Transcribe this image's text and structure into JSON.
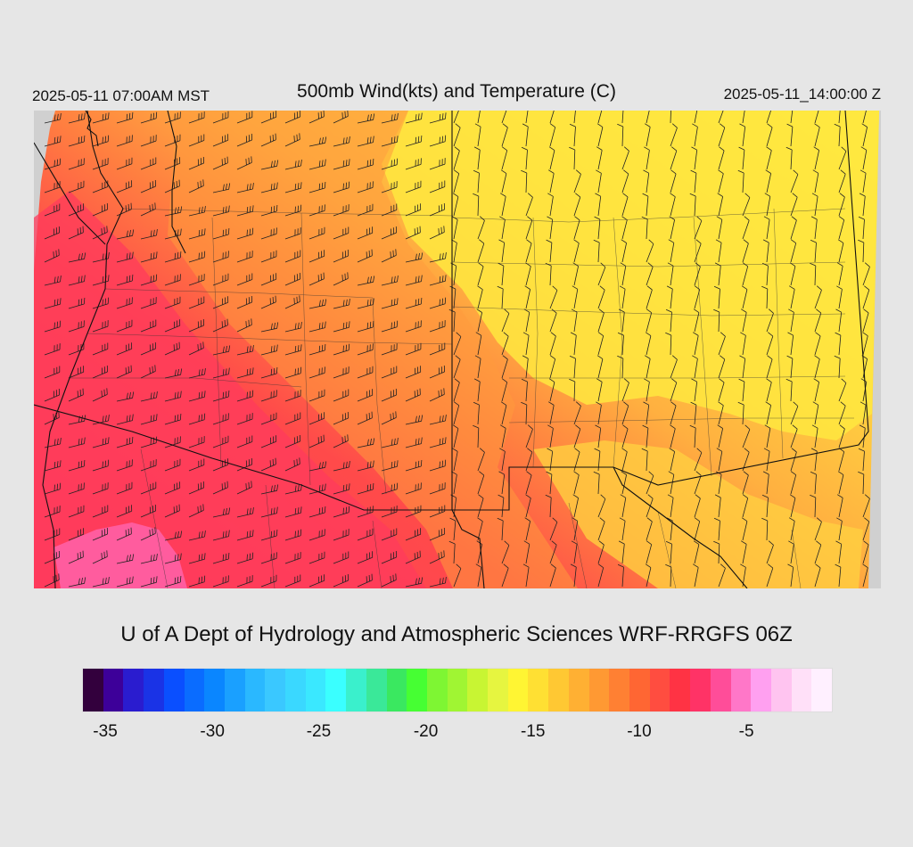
{
  "header": {
    "local_time": "2025-05-11 07:00AM MST",
    "title": "500mb Wind(kts) and Temperature (C)",
    "utc_time": "2025-05-11_14:00:00 Z"
  },
  "credit": "U of A Dept of Hydrology and Atmospheric Sciences WRF-RRGFS 06Z",
  "colorbar": {
    "colors": [
      "#33003d",
      "#3d0099",
      "#2a1ccf",
      "#1a33e6",
      "#0a4fff",
      "#0a6cff",
      "#0a86ff",
      "#1aa0ff",
      "#2ab8ff",
      "#3ac8ff",
      "#3ad8ff",
      "#3ae8ff",
      "#3affff",
      "#3af0cc",
      "#3ae899",
      "#3ae860",
      "#46ff33",
      "#7ef633",
      "#a0f533",
      "#c8f533",
      "#e6f540",
      "#fff533",
      "#ffe033",
      "#ffc833",
      "#ffb033",
      "#ff9933",
      "#ff8033",
      "#ff6633",
      "#ff4d40",
      "#ff3344",
      "#ff3366",
      "#ff4d99",
      "#ff77c8",
      "#ffa0f0",
      "#ffc4f0",
      "#ffe0f8",
      "#fff0ff"
    ],
    "ticks": [
      {
        "label": "-35",
        "frac": 0.031
      },
      {
        "label": "-30",
        "frac": 0.174
      },
      {
        "label": "-25",
        "frac": 0.316
      },
      {
        "label": "-20",
        "frac": 0.459
      },
      {
        "label": "-15",
        "frac": 0.602
      },
      {
        "label": "-10",
        "frac": 0.744
      },
      {
        "label": "-5",
        "frac": 0.887
      }
    ]
  },
  "map": {
    "temperature_colors": {
      "coldest": "#ff5c9e",
      "cold": "#ff3b5c",
      "cool": "#ff5544",
      "mid": "#ff8040",
      "warm": "#ffb040",
      "warmer": "#ffd040",
      "warmest": "#ffe840",
      "no_data": "#d0d0d0"
    }
  }
}
